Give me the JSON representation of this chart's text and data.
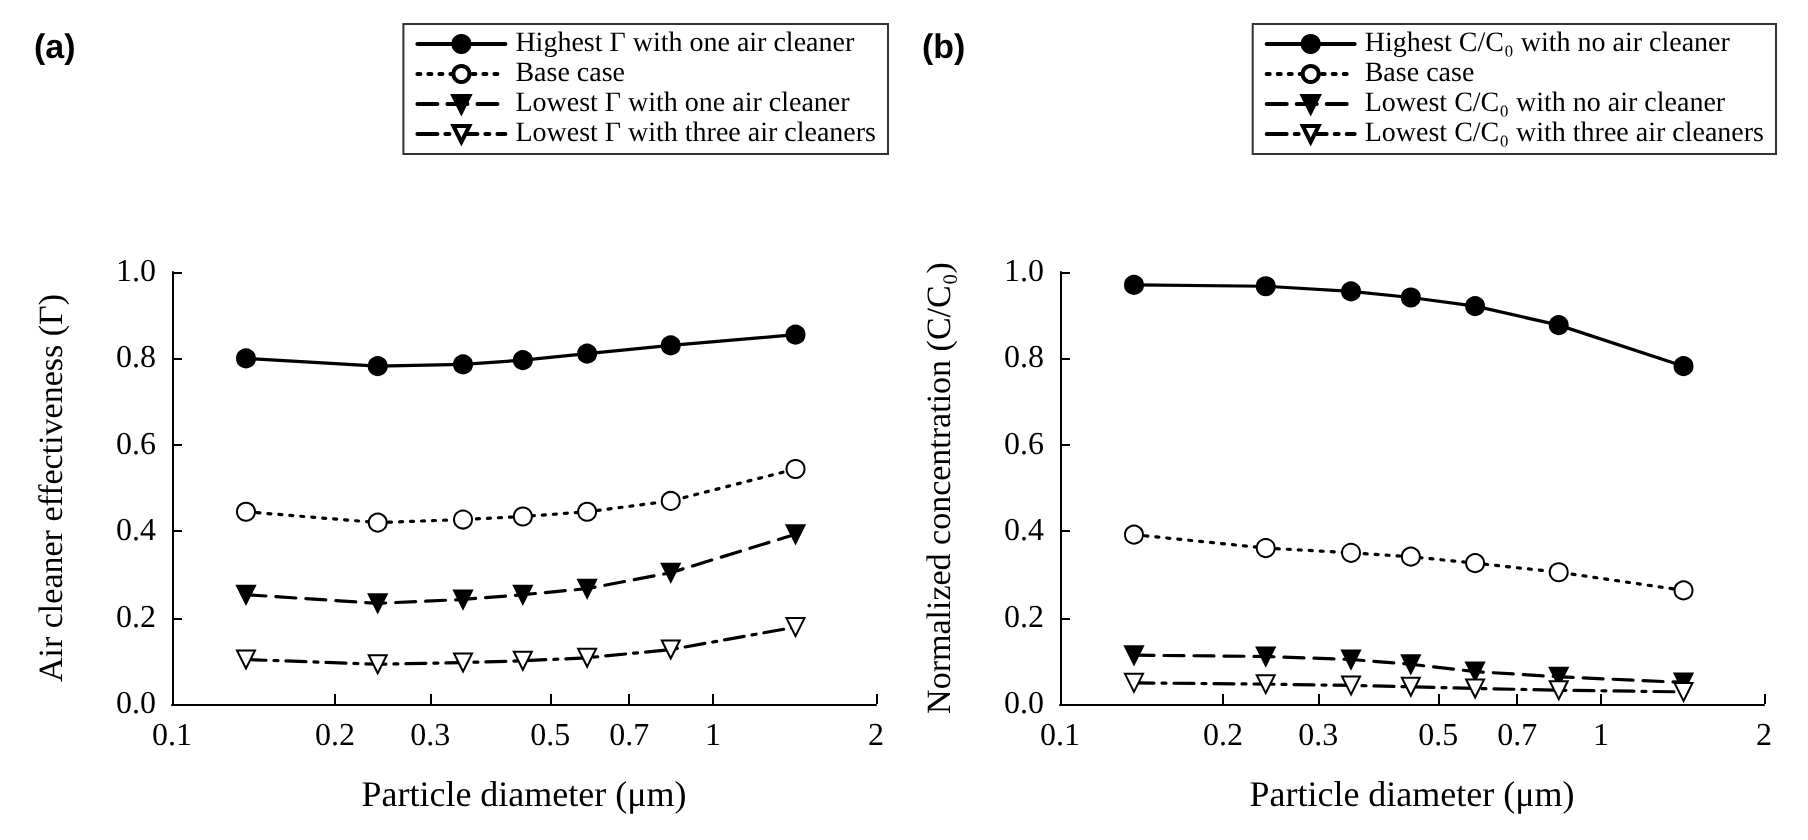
{
  "chart_data": [
    {
      "type": "line",
      "title": "(a)",
      "xlabel": "Particle diameter (μm)",
      "ylabel": "Air cleaner effectiveness (Γ)",
      "x": [
        0.137,
        0.24,
        0.345,
        0.445,
        0.585,
        0.835,
        1.42
      ],
      "log": "x",
      "xlim": [
        0.1,
        2
      ],
      "xticks": [
        0.1,
        0.2,
        0.3,
        0.5,
        0.7,
        1,
        2
      ],
      "ylim": [
        0,
        1
      ],
      "yticks": [
        {
          "value": 0,
          "label": "0.0"
        },
        {
          "value": 0.2,
          "label": "0.2"
        },
        {
          "value": 0.4,
          "label": "0.4"
        },
        {
          "value": 0.6,
          "label": "0.6"
        },
        {
          "value": 0.8,
          "label": "0.8"
        },
        {
          "value": 1,
          "label": "1.0"
        }
      ],
      "grid": false,
      "legend": "top right",
      "series": [
        {
          "name": "Highest Γ with one air cleaner",
          "color": "#000000",
          "marker": "circle",
          "colors": [
            "#000000",
            "#000000",
            "#000000",
            "#000000",
            "#000000",
            "#000000",
            "#000000"
          ],
          "line_style": "solid",
          "values": [
            0.8,
            0.782,
            0.786,
            0.796,
            0.811,
            0.83,
            0.855
          ]
        },
        {
          "name": "Base case",
          "color": "#000000",
          "marker": "circle",
          "colors": [
            "#ffffff",
            "#ffffff",
            "#ffffff",
            "#ffffff",
            "#ffffff",
            "#ffffff",
            "#ffffff"
          ],
          "line_style": "dotted",
          "values": [
            0.445,
            0.42,
            0.427,
            0.434,
            0.445,
            0.47,
            0.544
          ]
        },
        {
          "name": "Lowest Γ with one air cleaner",
          "color": "#000000",
          "marker": "triangle",
          "colors": [
            "#000000",
            "#000000",
            "#000000",
            "#000000",
            "#000000",
            "#000000",
            "#000000"
          ],
          "line_style": "dashed",
          "values": [
            0.253,
            0.233,
            0.242,
            0.253,
            0.267,
            0.304,
            0.393
          ]
        },
        {
          "name": "Lowest Γ with three air cleaners",
          "color": "#000000",
          "marker": "triangle",
          "colors": [
            "#ffffff",
            "#ffffff",
            "#ffffff",
            "#ffffff",
            "#ffffff",
            "#ffffff",
            "#ffffff"
          ],
          "line_style": "dashdot",
          "values": [
            0.103,
            0.092,
            0.096,
            0.1,
            0.107,
            0.126,
            0.178
          ]
        }
      ]
    },
    {
      "type": "line",
      "title": "(b)",
      "xlabel": "Particle diameter (μm)",
      "ylabel": "Normalized concentration (C/C₀)",
      "x": [
        0.137,
        0.24,
        0.345,
        0.445,
        0.585,
        0.835,
        1.42
      ],
      "log": "x",
      "xlim": [
        0.1,
        2
      ],
      "xticks": [
        0.1,
        0.2,
        0.3,
        0.5,
        0.7,
        1,
        2
      ],
      "ylim": [
        0,
        1
      ],
      "yticks": [
        {
          "value": 0,
          "label": "0.0"
        },
        {
          "value": 0.2,
          "label": "0.2"
        },
        {
          "value": 0.4,
          "label": "0.4"
        },
        {
          "value": 0.6,
          "label": "0.6"
        },
        {
          "value": 0.8,
          "label": "0.8"
        },
        {
          "value": 1,
          "label": "1.0"
        }
      ],
      "grid": false,
      "legend": "top right",
      "series": [
        {
          "name": "Highest C/C₀ with no air cleaner",
          "color": "#000000",
          "marker": "circle",
          "colors": [
            "#000000",
            "#000000",
            "#000000",
            "#000000",
            "#000000",
            "#000000",
            "#000000"
          ],
          "line_style": "solid",
          "values": [
            0.97,
            0.967,
            0.955,
            0.941,
            0.921,
            0.877,
            0.782
          ]
        },
        {
          "name": "Base case",
          "color": "#000000",
          "marker": "circle",
          "colors": [
            "#ffffff",
            "#ffffff",
            "#ffffff",
            "#ffffff",
            "#ffffff",
            "#ffffff",
            "#ffffff"
          ],
          "line_style": "dotted",
          "values": [
            0.392,
            0.361,
            0.35,
            0.341,
            0.326,
            0.305,
            0.263
          ]
        },
        {
          "name": "Lowest C/C₀ with no air cleaner",
          "color": "#000000",
          "marker": "triangle",
          "colors": [
            "#000000",
            "#000000",
            "#000000",
            "#000000",
            "#000000",
            "#000000",
            "#000000"
          ],
          "line_style": "dashed",
          "values": [
            0.113,
            0.11,
            0.103,
            0.092,
            0.075,
            0.063,
            0.05
          ]
        },
        {
          "name": "Lowest C/C₀ with three air cleaners",
          "color": "#000000",
          "marker": "triangle",
          "colors": [
            "#ffffff",
            "#ffffff",
            "#ffffff",
            "#ffffff",
            "#ffffff",
            "#ffffff",
            "#ffffff"
          ],
          "line_style": "dashdot",
          "values": [
            0.049,
            0.046,
            0.043,
            0.04,
            0.036,
            0.032,
            0.028
          ]
        }
      ]
    }
  ]
}
